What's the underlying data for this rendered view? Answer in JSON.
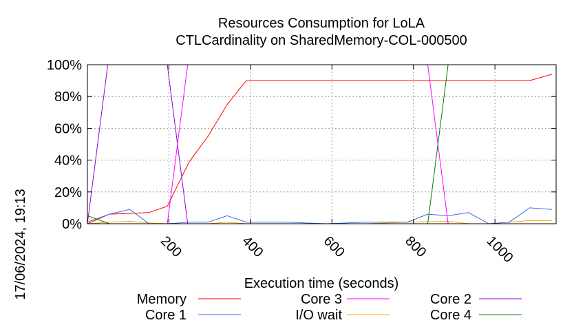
{
  "chart_data": {
    "type": "line",
    "title": "Resources Consumption for LoLA",
    "subtitle": "CTLCardinality on SharedMemory-COL-000500",
    "xlabel": "Execution time (seconds)",
    "ylabel": "",
    "side_label": "17/06/2024, 19:13",
    "xlim": [
      0,
      1150
    ],
    "ylim": [
      0,
      100
    ],
    "x_ticks": [
      200,
      400,
      600,
      800,
      1000
    ],
    "y_ticks": [
      0,
      20,
      40,
      60,
      80,
      100
    ],
    "y_tick_labels": [
      "0%",
      "20%",
      "40%",
      "60%",
      "80%",
      "100%"
    ],
    "grid": true,
    "legend_position": "bottom",
    "series": [
      {
        "name": "Memory",
        "color": "#ff0000",
        "x": [
          0,
          54,
          104,
          151,
          196,
          250,
          296,
          343,
          390,
          488,
          585,
          685,
          785,
          885,
          985,
          1085,
          1140
        ],
        "y": [
          0,
          6,
          6.5,
          7,
          11,
          39,
          55,
          75,
          90,
          90,
          90,
          90,
          90,
          90,
          90,
          90,
          94
        ]
      },
      {
        "name": "I/O wait",
        "color": "#ffa500",
        "x": [
          0,
          54,
          104,
          151,
          196,
          250,
          296,
          343,
          390,
          488,
          585,
          685,
          785,
          885,
          935,
          985,
          1035,
          1085,
          1140
        ],
        "y": [
          0,
          1,
          1.5,
          0.5,
          0,
          0,
          0,
          1,
          0,
          0,
          0,
          0,
          1,
          1.5,
          0,
          0,
          1,
          2,
          2
        ]
      },
      {
        "name": "Core 1",
        "color": "#4169e1",
        "x": [
          0,
          54,
          104,
          151,
          196,
          250,
          296,
          343,
          390,
          488,
          585,
          685,
          785,
          835,
          885,
          935,
          985,
          1035,
          1085,
          1140
        ],
        "y": [
          1,
          6,
          9,
          0,
          0,
          1,
          1,
          5,
          1,
          1,
          0,
          1,
          1,
          6,
          5,
          7,
          0,
          1,
          10,
          9
        ]
      },
      {
        "name": "Core 2",
        "color": "#9400d3",
        "x": [
          0,
          50,
          196,
          246,
          296,
          1140
        ],
        "y": [
          0,
          100,
          100,
          0,
          0,
          0
        ]
      },
      {
        "name": "Core 3",
        "color": "#ff00ff",
        "x": [
          0,
          196,
          246,
          835,
          885,
          1140
        ],
        "y": [
          0,
          0,
          100,
          100,
          0,
          0
        ]
      },
      {
        "name": "Core 4",
        "color": "#008000",
        "x": [
          0,
          54,
          835,
          885,
          1140
        ],
        "y": [
          5,
          0,
          0,
          100,
          100
        ]
      }
    ]
  }
}
